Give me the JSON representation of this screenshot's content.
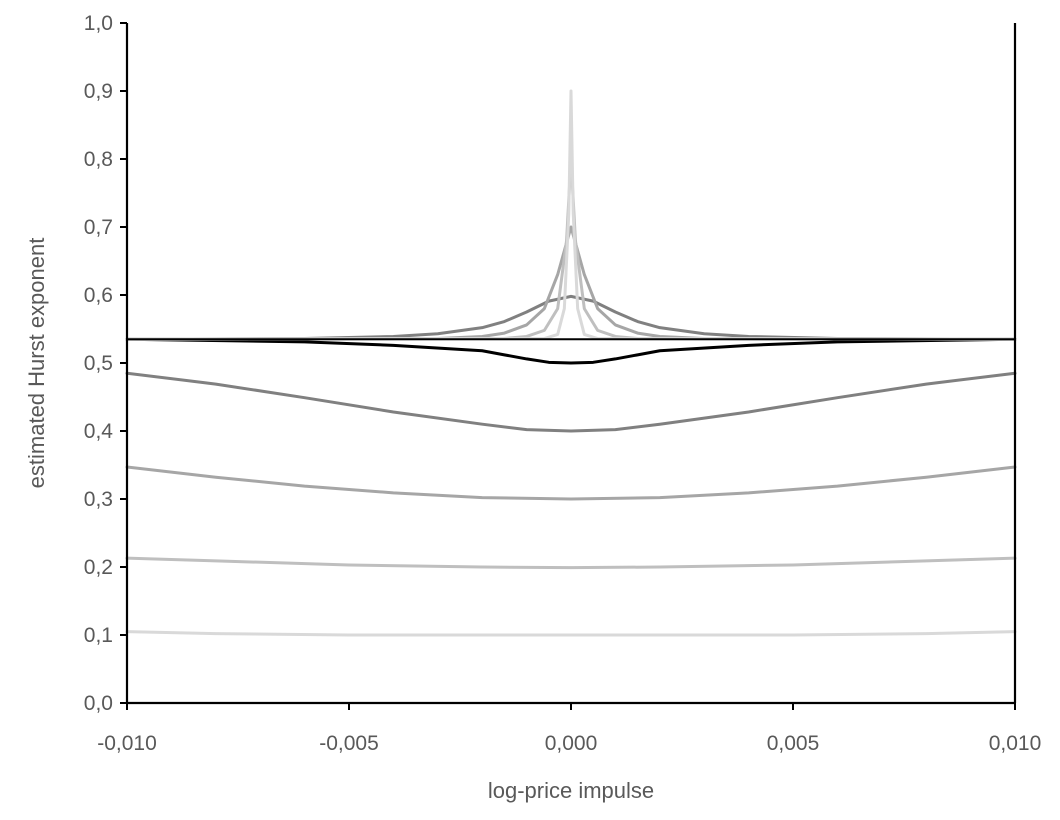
{
  "chart_data": {
    "type": "line",
    "title": "",
    "xlabel": "log-price impulse",
    "ylabel": "estimated Hurst exponent",
    "xlim": [
      -0.01,
      0.01
    ],
    "ylim": [
      0.0,
      1.0
    ],
    "x_ticks": [
      -0.01,
      -0.005,
      0.0,
      0.005,
      0.01
    ],
    "x_tick_labels": [
      "-0,010",
      "-0,005",
      "0,000",
      "0,005",
      "0,010"
    ],
    "y_ticks": [
      0.0,
      0.1,
      0.2,
      0.3,
      0.4,
      0.5,
      0.6,
      0.7,
      0.8,
      0.9,
      1.0
    ],
    "y_tick_labels": [
      "0,0",
      "0,1",
      "0,2",
      "0,3",
      "0,4",
      "0,5",
      "0,6",
      "0,7",
      "0,8",
      "0,9",
      "1,0"
    ],
    "reference_line": {
      "y": 0.535,
      "color": "#000000"
    },
    "grid": false,
    "legend": "none",
    "series": [
      {
        "color": "#d9d9d9",
        "points": [
          [
            -0.01,
            0.105
          ],
          [
            -0.008,
            0.102
          ],
          [
            -0.005,
            0.1
          ],
          [
            -0.002,
            0.1
          ],
          [
            0.0,
            0.1
          ],
          [
            0.002,
            0.1
          ],
          [
            0.005,
            0.1
          ],
          [
            0.008,
            0.102
          ],
          [
            0.01,
            0.105
          ]
        ]
      },
      {
        "color": "#bfbfbf",
        "points": [
          [
            -0.01,
            0.213
          ],
          [
            -0.008,
            0.209
          ],
          [
            -0.005,
            0.203
          ],
          [
            -0.002,
            0.2
          ],
          [
            0.0,
            0.199
          ],
          [
            0.002,
            0.2
          ],
          [
            0.005,
            0.203
          ],
          [
            0.008,
            0.209
          ],
          [
            0.01,
            0.213
          ]
        ]
      },
      {
        "color": "#a6a6a6",
        "points": [
          [
            -0.01,
            0.347
          ],
          [
            -0.008,
            0.332
          ],
          [
            -0.006,
            0.319
          ],
          [
            -0.004,
            0.309
          ],
          [
            -0.002,
            0.302
          ],
          [
            0.0,
            0.3
          ],
          [
            0.002,
            0.302
          ],
          [
            0.004,
            0.309
          ],
          [
            0.006,
            0.319
          ],
          [
            0.008,
            0.332
          ],
          [
            0.01,
            0.347
          ]
        ]
      },
      {
        "color": "#808080",
        "points": [
          [
            -0.01,
            0.485
          ],
          [
            -0.008,
            0.469
          ],
          [
            -0.006,
            0.449
          ],
          [
            -0.004,
            0.428
          ],
          [
            -0.002,
            0.41
          ],
          [
            -0.001,
            0.402
          ],
          [
            0.0,
            0.4
          ],
          [
            0.001,
            0.402
          ],
          [
            0.002,
            0.41
          ],
          [
            0.004,
            0.428
          ],
          [
            0.006,
            0.449
          ],
          [
            0.008,
            0.469
          ],
          [
            0.01,
            0.485
          ]
        ]
      },
      {
        "color": "#000000",
        "points": [
          [
            -0.01,
            0.535
          ],
          [
            -0.006,
            0.531
          ],
          [
            -0.004,
            0.526
          ],
          [
            -0.002,
            0.518
          ],
          [
            -0.0015,
            0.512
          ],
          [
            -0.001,
            0.506
          ],
          [
            -0.0005,
            0.501
          ],
          [
            0.0,
            0.5
          ],
          [
            0.0005,
            0.501
          ],
          [
            0.001,
            0.506
          ],
          [
            0.0015,
            0.512
          ],
          [
            0.002,
            0.518
          ],
          [
            0.004,
            0.526
          ],
          [
            0.006,
            0.531
          ],
          [
            0.01,
            0.535
          ]
        ]
      },
      {
        "color": "#808080",
        "points": [
          [
            -0.01,
            0.535
          ],
          [
            -0.006,
            0.536
          ],
          [
            -0.004,
            0.539
          ],
          [
            -0.003,
            0.543
          ],
          [
            -0.002,
            0.552
          ],
          [
            -0.0015,
            0.561
          ],
          [
            -0.001,
            0.575
          ],
          [
            -0.0005,
            0.591
          ],
          [
            0.0,
            0.598
          ],
          [
            0.0005,
            0.591
          ],
          [
            0.001,
            0.575
          ],
          [
            0.0015,
            0.561
          ],
          [
            0.002,
            0.552
          ],
          [
            0.003,
            0.543
          ],
          [
            0.004,
            0.539
          ],
          [
            0.006,
            0.536
          ],
          [
            0.01,
            0.535
          ]
        ]
      },
      {
        "color": "#a6a6a6",
        "points": [
          [
            -0.01,
            0.535
          ],
          [
            -0.003,
            0.536
          ],
          [
            -0.002,
            0.539
          ],
          [
            -0.0015,
            0.544
          ],
          [
            -0.001,
            0.556
          ],
          [
            -0.0006,
            0.58
          ],
          [
            -0.0003,
            0.63
          ],
          [
            0.0,
            0.7
          ],
          [
            0.0003,
            0.63
          ],
          [
            0.0006,
            0.58
          ],
          [
            0.001,
            0.556
          ],
          [
            0.0015,
            0.544
          ],
          [
            0.002,
            0.539
          ],
          [
            0.003,
            0.536
          ],
          [
            0.01,
            0.535
          ]
        ]
      },
      {
        "color": "#bfbfbf",
        "points": [
          [
            -0.01,
            0.535
          ],
          [
            -0.0015,
            0.536
          ],
          [
            -0.001,
            0.539
          ],
          [
            -0.0006,
            0.548
          ],
          [
            -0.0003,
            0.58
          ],
          [
            -0.0001,
            0.68
          ],
          [
            0.0,
            0.8
          ],
          [
            0.0001,
            0.68
          ],
          [
            0.0003,
            0.58
          ],
          [
            0.0006,
            0.548
          ],
          [
            0.001,
            0.539
          ],
          [
            0.0015,
            0.536
          ],
          [
            0.01,
            0.535
          ]
        ]
      },
      {
        "color": "#d9d9d9",
        "points": [
          [
            -0.01,
            0.535
          ],
          [
            -0.0006,
            0.536
          ],
          [
            -0.0003,
            0.542
          ],
          [
            -0.00015,
            0.58
          ],
          [
            -5e-05,
            0.72
          ],
          [
            0.0,
            0.9
          ],
          [
            5e-05,
            0.72
          ],
          [
            0.00015,
            0.58
          ],
          [
            0.0003,
            0.542
          ],
          [
            0.0006,
            0.536
          ],
          [
            0.01,
            0.535
          ]
        ]
      }
    ]
  }
}
